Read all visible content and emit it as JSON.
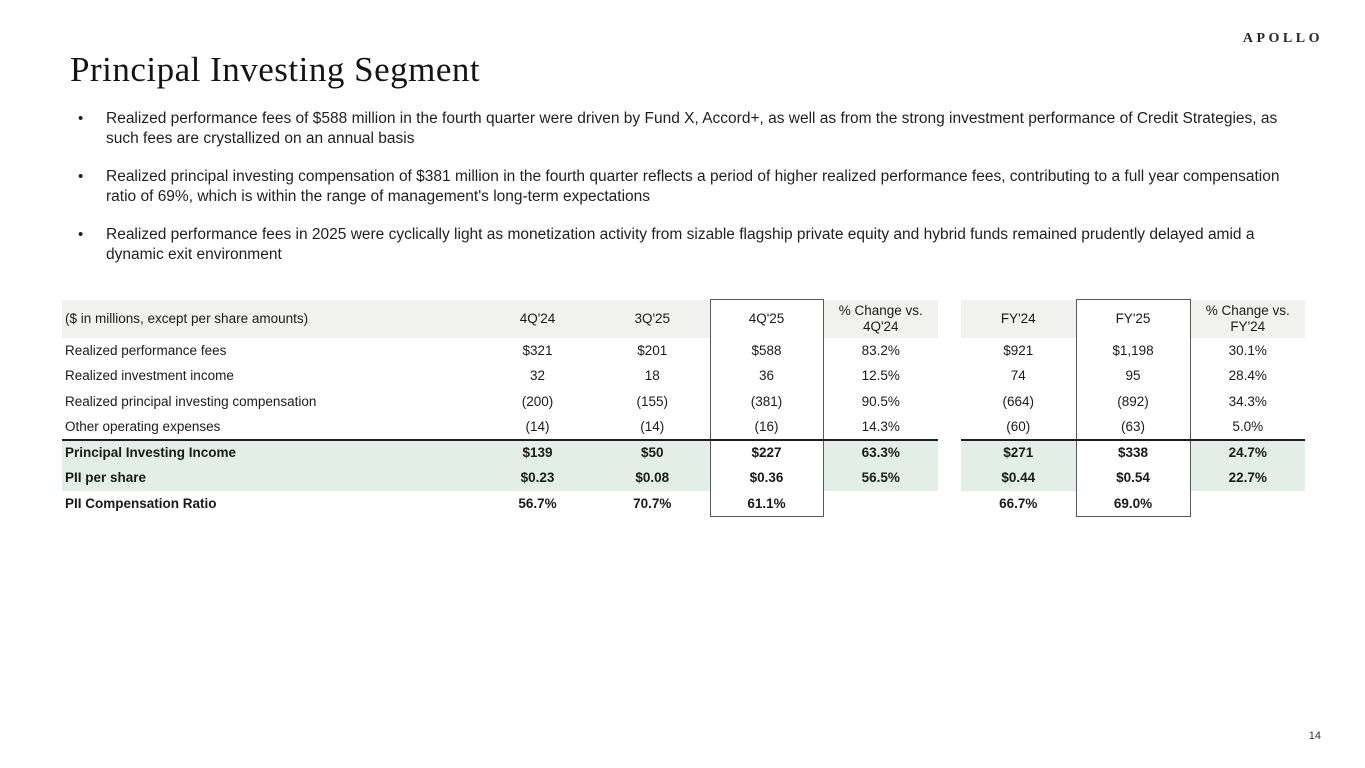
{
  "brand": {
    "logo_text": "APOLLO"
  },
  "slide": {
    "title": "Principal Investing Segment",
    "page_number": "14"
  },
  "bullets": [
    "Realized performance fees of $588 million in the fourth quarter were driven by Fund X, Accord+, as well as from the strong investment performance of Credit Strategies, as such fees are crystallized on an annual basis",
    "Realized principal investing compensation of $381 million in the fourth quarter reflects a period of higher realized performance fees, contributing to a full year compensation ratio of 69%, which is within the range of management's long-term expectations",
    "Realized performance fees in 2025 were cyclically light as monetization activity from sizable flagship private equity and hybrid funds remained prudently delayed amid a dynamic exit environment"
  ],
  "table": {
    "caption": "($ in millions, except per share amounts)",
    "columns": [
      "4Q'24",
      "3Q'25",
      "4Q'25",
      "% Change vs. 4Q'24",
      "FY'24",
      "FY'25",
      "% Change vs. FY'24"
    ],
    "boxed_column_indexes": [
      2,
      5
    ],
    "gap_after_index": 3,
    "rows": [
      {
        "label": "Realized performance fees",
        "values": [
          "$321",
          "$201",
          "$588",
          "83.2%",
          "$921",
          "$1,198",
          "30.1%"
        ],
        "highlight": false,
        "bold": false,
        "rule_below": false
      },
      {
        "label": "Realized investment income",
        "values": [
          "32",
          "18",
          "36",
          "12.5%",
          "74",
          "95",
          "28.4%"
        ],
        "highlight": false,
        "bold": false,
        "rule_below": false
      },
      {
        "label": "Realized principal investing compensation",
        "values": [
          "(200)",
          "(155)",
          "(381)",
          "90.5%",
          "(664)",
          "(892)",
          "34.3%"
        ],
        "highlight": false,
        "bold": false,
        "rule_below": false
      },
      {
        "label": "Other operating expenses",
        "values": [
          "(14)",
          "(14)",
          "(16)",
          "14.3%",
          "(60)",
          "(63)",
          "5.0%"
        ],
        "highlight": false,
        "bold": false,
        "rule_below": true
      },
      {
        "label": "Principal Investing Income",
        "values": [
          "$139",
          "$50",
          "$227",
          "63.3%",
          "$271",
          "$338",
          "24.7%"
        ],
        "highlight": true,
        "bold": true,
        "rule_below": false
      },
      {
        "label": "PII per share",
        "values": [
          "$0.23",
          "$0.08",
          "$0.36",
          "56.5%",
          "$0.44",
          "$0.54",
          "22.7%"
        ],
        "highlight": true,
        "bold": true,
        "rule_below": false
      },
      {
        "label": "PII Compensation Ratio",
        "values": [
          "56.7%",
          "70.7%",
          "61.1%",
          "",
          "66.7%",
          "69.0%",
          ""
        ],
        "highlight": false,
        "bold": true,
        "rule_below": false
      }
    ]
  },
  "colors": {
    "header_bg": "#f1f1ef",
    "highlight_bg": "#e4eee9",
    "box_border": "#595959",
    "rule_line": "#1f1f1f"
  }
}
